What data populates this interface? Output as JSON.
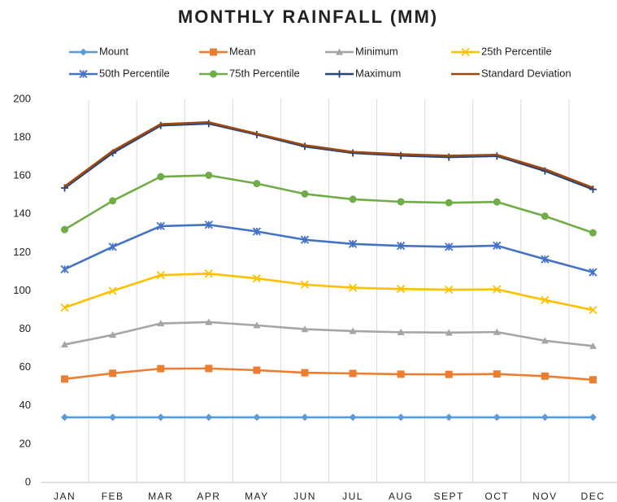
{
  "chart_data": {
    "type": "line",
    "title": "MONTHLY RAINFALL (MM)",
    "categories": [
      "JAN",
      "FEB",
      "MAR",
      "APR",
      "MAY",
      "JUN",
      "JUL",
      "AUG",
      "SEPT",
      "OCT",
      "NOV",
      "DEC"
    ],
    "ylim": [
      0,
      200
    ],
    "yticks": [
      0,
      20,
      40,
      60,
      80,
      100,
      120,
      140,
      160,
      180,
      200
    ],
    "vertical_grid": true,
    "series": [
      {
        "name": "Mount",
        "color": "#5b9bd5",
        "marker": "diamond",
        "values": [
          34,
          34,
          34,
          34,
          34,
          34,
          34,
          34,
          34,
          34,
          34,
          34
        ]
      },
      {
        "name": "Mean",
        "color": "#ed7d31",
        "marker": "square",
        "values": [
          54,
          57,
          59.4,
          59.5,
          58.6,
          57.3,
          56.9,
          56.5,
          56.4,
          56.6,
          55.5,
          53.6
        ]
      },
      {
        "name": "Minimum",
        "color": "#a5a5a5",
        "marker": "triangle",
        "values": [
          72,
          77,
          83,
          83.7,
          82,
          80,
          79,
          78.4,
          78.2,
          78.5,
          74,
          71.2
        ]
      },
      {
        "name": "25th Percentile",
        "color": "#ffc000",
        "marker": "x",
        "values": [
          91.3,
          100,
          108.2,
          109,
          106.5,
          103.3,
          101.6,
          101,
          100.6,
          100.8,
          95.2,
          90
        ]
      },
      {
        "name": "50th Percentile",
        "color": "#4472c4",
        "marker": "star",
        "values": [
          111.3,
          123,
          133.8,
          134.5,
          131,
          126.7,
          124.5,
          123.5,
          123,
          123.6,
          116.5,
          109.7
        ]
      },
      {
        "name": "75th Percentile",
        "color": "#70ad47",
        "marker": "circle",
        "values": [
          132,
          147,
          159.6,
          160.3,
          156,
          150.6,
          147.8,
          146.5,
          146,
          146.4,
          139,
          130.3
        ]
      },
      {
        "name": "Maximum",
        "color": "#264478",
        "marker": "plus",
        "values": [
          153.7,
          172,
          186.3,
          187.3,
          181.6,
          175.4,
          172,
          170.6,
          169.8,
          170.4,
          162.6,
          153
        ]
      },
      {
        "name": "Standard Deviation",
        "color": "#9e480e",
        "marker": "none",
        "values": [
          154.5,
          173,
          187,
          188,
          182,
          176,
          172.5,
          171.3,
          170.5,
          171,
          163.5,
          153.8
        ]
      }
    ]
  }
}
